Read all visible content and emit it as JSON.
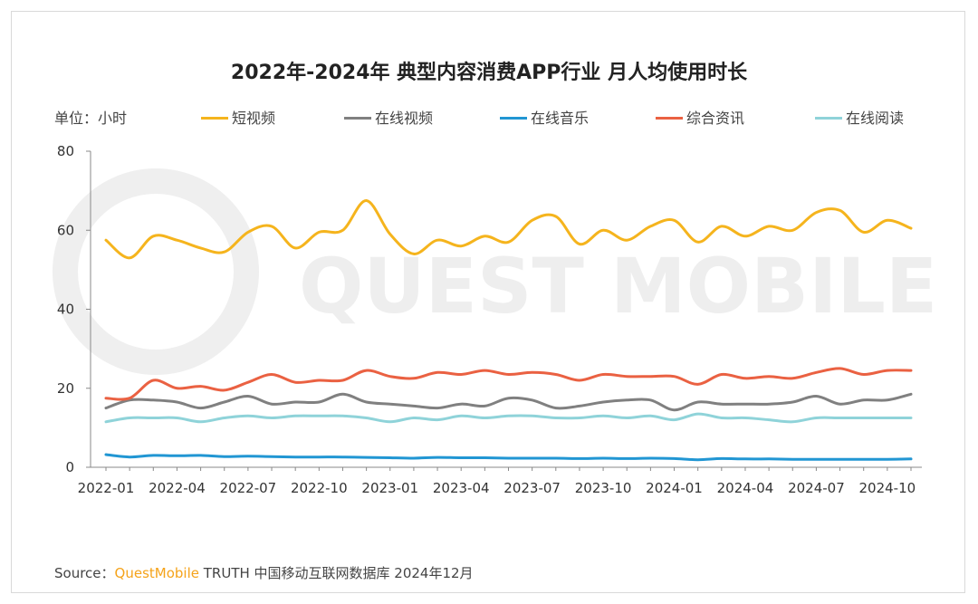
{
  "chart_data": {
    "type": "line",
    "title": "2022年-2024年 典型内容消费APP行业 月人均使用时长",
    "unit_label": "单位：小时",
    "ylim": [
      0,
      80
    ],
    "yticks": [
      0,
      20,
      40,
      60,
      80
    ],
    "x": [
      "2022-01",
      "2022-02",
      "2022-03",
      "2022-04",
      "2022-05",
      "2022-06",
      "2022-07",
      "2022-08",
      "2022-09",
      "2022-10",
      "2022-11",
      "2022-12",
      "2023-01",
      "2023-02",
      "2023-03",
      "2023-04",
      "2023-05",
      "2023-06",
      "2023-07",
      "2023-08",
      "2023-09",
      "2023-10",
      "2023-11",
      "2023-12",
      "2024-01",
      "2024-02",
      "2024-03",
      "2024-04",
      "2024-05",
      "2024-06",
      "2024-07",
      "2024-08",
      "2024-09",
      "2024-10",
      "2024-11"
    ],
    "xtick_labels": [
      "2022-01",
      "2022-04",
      "2022-07",
      "2022-10",
      "2023-01",
      "2023-04",
      "2023-07",
      "2023-10",
      "2024-01",
      "2024-04",
      "2024-07",
      "2024-10"
    ],
    "series": [
      {
        "name": "短视频",
        "color": "#f5b41d",
        "values": [
          57.5,
          53.0,
          58.5,
          57.5,
          55.5,
          54.5,
          59.5,
          61.0,
          55.5,
          59.5,
          60.0,
          67.5,
          59.0,
          54.0,
          57.5,
          56.0,
          58.5,
          57.0,
          62.5,
          63.5,
          56.5,
          60.0,
          57.5,
          61.0,
          62.5,
          57.0,
          61.0,
          58.5,
          61.0,
          60.0,
          64.5,
          65.0,
          59.5,
          62.5,
          60.5
        ]
      },
      {
        "name": "在线视频",
        "color": "#808080",
        "values": [
          15.0,
          17.0,
          17.0,
          16.5,
          15.0,
          16.5,
          18.0,
          16.0,
          16.5,
          16.5,
          18.5,
          16.5,
          16.0,
          15.5,
          15.0,
          16.0,
          15.5,
          17.5,
          17.0,
          15.0,
          15.5,
          16.5,
          17.0,
          17.0,
          14.5,
          16.5,
          16.0,
          16.0,
          16.0,
          16.5,
          18.0,
          16.0,
          17.0,
          17.0,
          18.5
        ]
      },
      {
        "name": "在线音乐",
        "color": "#2196d3",
        "values": [
          3.2,
          2.6,
          3.0,
          2.9,
          3.0,
          2.7,
          2.8,
          2.7,
          2.6,
          2.6,
          2.6,
          2.5,
          2.4,
          2.3,
          2.5,
          2.4,
          2.4,
          2.3,
          2.3,
          2.3,
          2.2,
          2.3,
          2.2,
          2.3,
          2.2,
          1.9,
          2.2,
          2.1,
          2.1,
          2.0,
          2.0,
          2.0,
          2.0,
          2.0,
          2.1
        ]
      },
      {
        "name": "综合资讯",
        "color": "#ea6142",
        "values": [
          17.5,
          17.5,
          22.0,
          20.0,
          20.5,
          19.5,
          21.5,
          23.5,
          21.5,
          22.0,
          22.0,
          24.5,
          23.0,
          22.5,
          24.0,
          23.5,
          24.5,
          23.5,
          24.0,
          23.5,
          22.0,
          23.5,
          23.0,
          23.0,
          23.0,
          21.0,
          23.5,
          22.5,
          23.0,
          22.5,
          24.0,
          25.0,
          23.5,
          24.5,
          24.5
        ]
      },
      {
        "name": "在线阅读",
        "color": "#8fd3d9",
        "values": [
          11.5,
          12.5,
          12.5,
          12.5,
          11.5,
          12.5,
          13.0,
          12.5,
          13.0,
          13.0,
          13.0,
          12.5,
          11.5,
          12.5,
          12.0,
          13.0,
          12.5,
          13.0,
          13.0,
          12.5,
          12.5,
          13.0,
          12.5,
          13.0,
          12.0,
          13.5,
          12.5,
          12.5,
          12.0,
          11.5,
          12.5,
          12.5,
          12.5,
          12.5,
          12.5
        ]
      }
    ]
  },
  "legend": [
    "短视频",
    "在线视频",
    "在线音乐",
    "综合资讯",
    "在线阅读"
  ],
  "watermark": "QUEST MOBILE",
  "source": {
    "prefix": "Source：",
    "brand": "QuestMobile",
    "text": " TRUTH 中国移动互联网数据库 2024年12月"
  }
}
